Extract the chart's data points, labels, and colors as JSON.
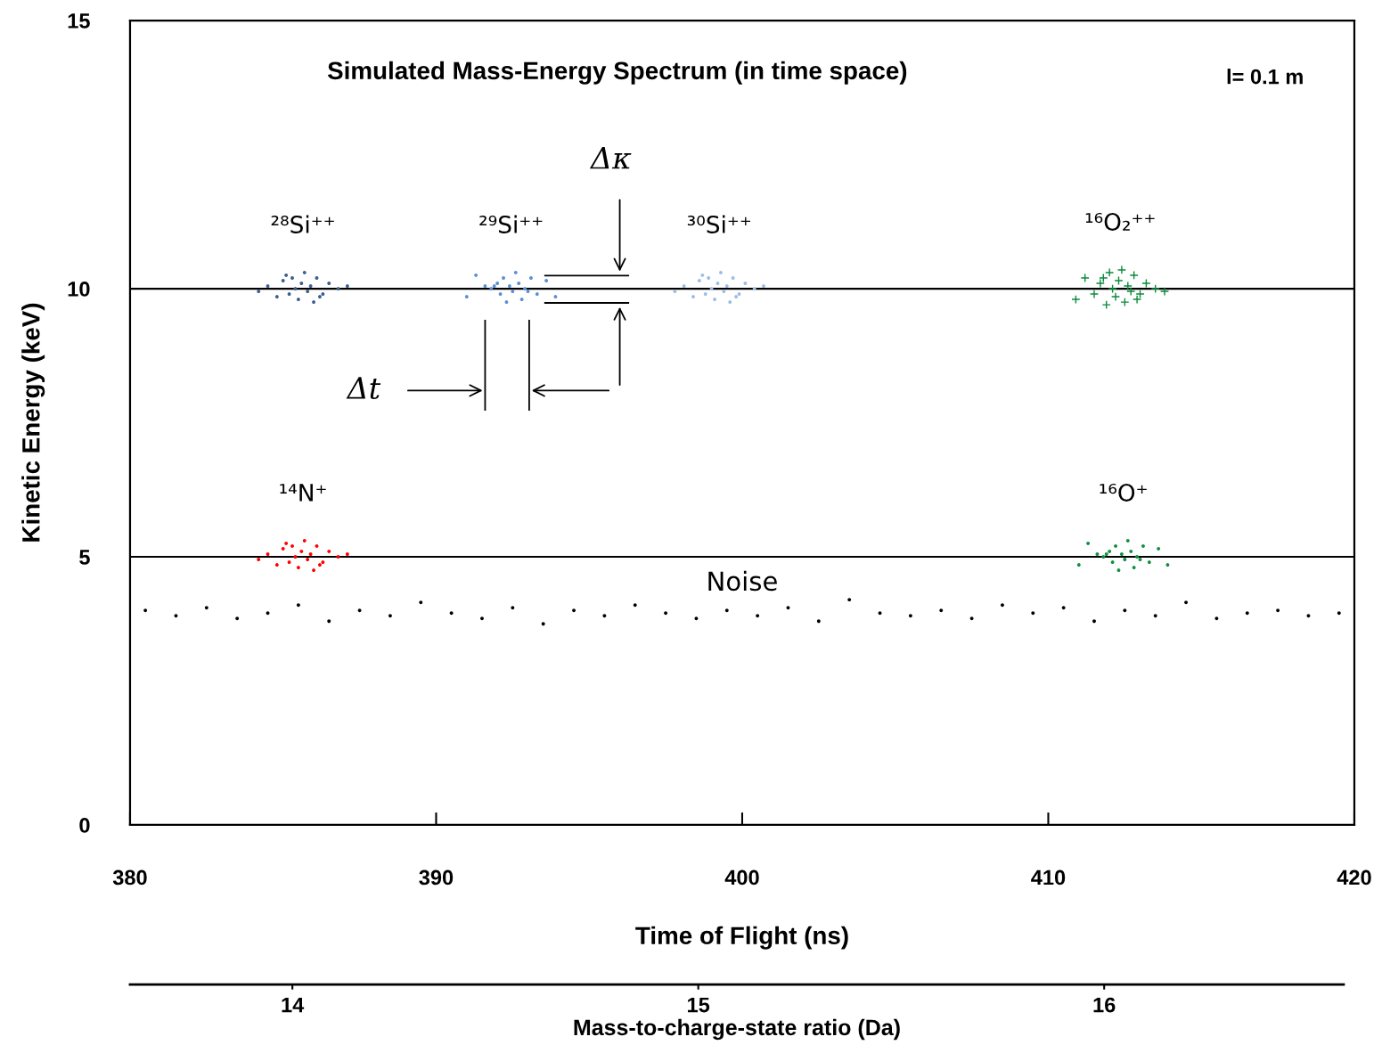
{
  "chart_data": {
    "type": "scatter",
    "title": "Simulated Mass-Energy Spectrum (in time space)",
    "xlabel": "Time of Flight (ns)",
    "ylabel": "Kinetic Energy (keV)",
    "x2label": "Mass-to-charge-state ratio (Da)",
    "xlim": [
      380,
      420
    ],
    "xticks": [
      380,
      390,
      400,
      410,
      420
    ],
    "ylim": [
      0,
      15
    ],
    "yticks": [
      0,
      5,
      10,
      15
    ],
    "x2lim": [
      13.6,
      16.59
    ],
    "x2ticks": [
      14,
      15,
      16
    ],
    "grid": false,
    "legend": false,
    "marker": "circle",
    "annotations": [
      "l= 0.1 m",
      "Δκ",
      "Δt"
    ],
    "ref_lines": [
      {
        "axis": "y",
        "value": 10,
        "color": "#000000"
      },
      {
        "axis": "y",
        "value": 5,
        "color": "#000000"
      }
    ],
    "series": [
      {
        "name": "²⁸Si⁺⁺",
        "color": "#3b5f8f",
        "x": [
          384.2,
          384.5,
          384.8,
          385.0,
          385.2,
          385.3,
          385.4,
          385.5,
          385.6,
          385.7,
          385.8,
          385.9,
          386.0,
          386.1,
          386.3,
          386.5,
          386.8,
          387.1,
          385.1,
          386.2
        ],
        "values": [
          9.95,
          10.05,
          9.85,
          10.15,
          9.9,
          10.2,
          10.0,
          9.8,
          10.1,
          10.3,
          9.95,
          10.05,
          9.75,
          10.2,
          9.9,
          10.1,
          10.0,
          10.05,
          10.25,
          9.85
        ]
      },
      {
        "name": "²⁹Si⁺⁺",
        "color": "#5b8fd6",
        "x": [
          391.0,
          391.3,
          391.6,
          391.8,
          392.0,
          392.1,
          392.2,
          392.3,
          392.4,
          392.5,
          392.6,
          392.7,
          392.8,
          392.9,
          393.1,
          393.3,
          393.6,
          393.9,
          391.9,
          393.0
        ],
        "values": [
          9.85,
          10.25,
          10.05,
          10.0,
          10.1,
          9.9,
          10.2,
          9.75,
          10.05,
          9.95,
          10.3,
          10.1,
          9.8,
          10.0,
          10.2,
          9.9,
          10.15,
          9.85,
          10.05,
          9.95
        ]
      },
      {
        "name": "³⁰Si⁺⁺",
        "color": "#9dbde6",
        "x": [
          397.8,
          398.1,
          398.4,
          398.6,
          398.8,
          398.9,
          399.0,
          399.1,
          399.2,
          399.3,
          399.4,
          399.5,
          399.6,
          399.7,
          399.9,
          400.1,
          400.4,
          400.7,
          398.7,
          399.8
        ],
        "values": [
          9.95,
          10.05,
          9.85,
          10.15,
          9.9,
          10.2,
          10.0,
          9.8,
          10.1,
          10.3,
          9.95,
          10.05,
          9.75,
          10.2,
          9.9,
          10.1,
          10.0,
          10.05,
          10.25,
          9.85
        ]
      },
      {
        "name": "¹⁶O₂⁺⁺",
        "color": "#0a8a3a",
        "marker": "cross",
        "x": [
          410.9,
          411.2,
          411.5,
          411.7,
          411.9,
          412.0,
          412.1,
          412.2,
          412.3,
          412.4,
          412.5,
          412.6,
          412.7,
          412.8,
          413.0,
          413.2,
          413.5,
          413.8,
          411.8,
          412.9
        ],
        "values": [
          9.8,
          10.2,
          9.9,
          10.1,
          9.7,
          10.3,
          10.0,
          9.85,
          10.15,
          10.35,
          9.75,
          10.05,
          9.95,
          10.25,
          9.9,
          10.1,
          10.0,
          9.95,
          10.2,
          9.8
        ]
      },
      {
        "name": "¹⁴N⁺",
        "color": "#ff0000",
        "x": [
          384.2,
          384.5,
          384.8,
          385.0,
          385.2,
          385.3,
          385.4,
          385.5,
          385.6,
          385.7,
          385.8,
          385.9,
          386.0,
          386.1,
          386.3,
          386.5,
          386.8,
          387.1,
          385.1,
          386.2
        ],
        "values": [
          4.95,
          5.05,
          4.85,
          5.15,
          4.9,
          5.2,
          5.0,
          4.8,
          5.1,
          5.3,
          4.95,
          5.05,
          4.75,
          5.2,
          4.9,
          5.1,
          5.0,
          5.05,
          5.25,
          4.85
        ]
      },
      {
        "name": "¹⁶O⁺",
        "color": "#109040",
        "x": [
          411.0,
          411.3,
          411.6,
          411.8,
          412.0,
          412.1,
          412.2,
          412.3,
          412.4,
          412.5,
          412.6,
          412.7,
          412.8,
          412.9,
          413.1,
          413.3,
          413.6,
          413.9,
          411.9,
          413.0
        ],
        "values": [
          4.85,
          5.25,
          5.05,
          5.0,
          5.1,
          4.9,
          5.2,
          4.75,
          5.05,
          4.95,
          5.3,
          5.1,
          4.8,
          5.0,
          5.2,
          4.9,
          5.15,
          4.85,
          5.05,
          4.95
        ]
      },
      {
        "name": "Noise",
        "color": "#000000",
        "x": [
          380.5,
          381.5,
          382.5,
          383.5,
          384.5,
          385.5,
          386.5,
          387.5,
          388.5,
          389.5,
          390.5,
          391.5,
          392.5,
          393.5,
          394.5,
          395.5,
          396.5,
          397.5,
          398.5,
          399.5,
          400.5,
          401.5,
          402.5,
          403.5,
          404.5,
          405.5,
          406.5,
          407.5,
          408.5,
          409.5,
          410.5,
          411.5,
          412.5,
          413.5,
          414.5,
          415.5,
          416.5,
          417.5,
          418.5,
          419.5
        ],
        "values": [
          4.0,
          3.9,
          4.05,
          3.85,
          3.95,
          4.1,
          3.8,
          4.0,
          3.9,
          4.15,
          3.95,
          3.85,
          4.05,
          3.75,
          4.0,
          3.9,
          4.1,
          3.95,
          3.85,
          4.0,
          3.9,
          4.05,
          3.8,
          4.2,
          3.95,
          3.9,
          4.0,
          3.85,
          4.1,
          3.95,
          4.05,
          3.8,
          4.0,
          3.9,
          4.15,
          3.85,
          3.95,
          4.0,
          3.9,
          3.95
        ]
      }
    ]
  }
}
